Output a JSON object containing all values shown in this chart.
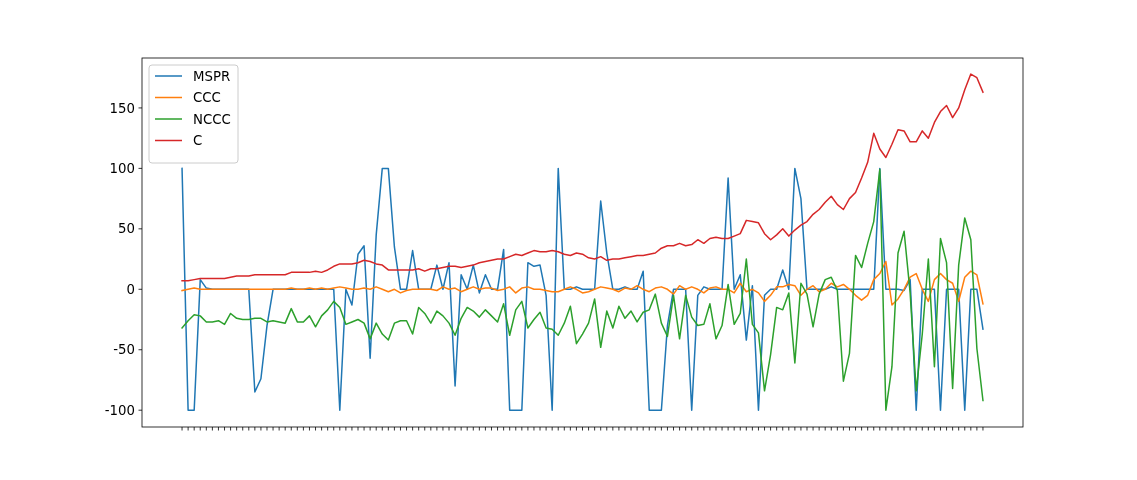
{
  "chart_data": {
    "type": "line",
    "categories": [
      null,
      null,
      null,
      null,
      null,
      null,
      null,
      null,
      null,
      null,
      null,
      null,
      null,
      null,
      null,
      null,
      null,
      null,
      null,
      null,
      null,
      null,
      null,
      null,
      null,
      null,
      null,
      null,
      null,
      null,
      null,
      null,
      null,
      null,
      null,
      null,
      null,
      null,
      null,
      null,
      null,
      null,
      null,
      null,
      null,
      null,
      null,
      null,
      null,
      null,
      null,
      null,
      null,
      null,
      null,
      null,
      null,
      null,
      null,
      null,
      null,
      null,
      null,
      null,
      null,
      null,
      null,
      null,
      null,
      null,
      null,
      null,
      null,
      null,
      null,
      null,
      null,
      null,
      null,
      null,
      null,
      null,
      null,
      null,
      null,
      null,
      null,
      null,
      null,
      null,
      null,
      null,
      null,
      null,
      null,
      null,
      null,
      null,
      null,
      null,
      null,
      null,
      null,
      null,
      null,
      null,
      null,
      null,
      null,
      null,
      null,
      null,
      null,
      null,
      null,
      null,
      null,
      null,
      null,
      null,
      null,
      null,
      null,
      null,
      null,
      null,
      null,
      null,
      null,
      null,
      null,
      null,
      null
    ],
    "series": [
      {
        "name": "MSPR",
        "color": "#1f77b4",
        "values": [
          100,
          -100,
          -100,
          8,
          1,
          0,
          0,
          0,
          0,
          0,
          0,
          0,
          -85,
          -74,
          -30,
          0,
          0,
          0,
          0,
          0,
          0,
          0,
          0,
          0,
          0,
          0,
          -100,
          0,
          -13,
          29,
          36,
          -57,
          45,
          100,
          100,
          35,
          0,
          0,
          32,
          0,
          0,
          0,
          20,
          0,
          22,
          -80,
          12,
          0,
          20,
          -3,
          12,
          0,
          0,
          33,
          -100,
          -100,
          -100,
          22,
          19,
          20,
          -5,
          -100,
          100,
          0,
          0,
          2,
          0,
          0,
          0,
          73,
          30,
          0,
          0,
          2,
          0,
          0,
          15,
          -100,
          -100,
          -100,
          -30,
          0,
          0,
          0,
          -100,
          -5,
          2,
          0,
          0,
          0,
          92,
          0,
          12,
          -42,
          3,
          -100,
          -5,
          0,
          0,
          16,
          0,
          100,
          75,
          0,
          0,
          0,
          0,
          2,
          0,
          0,
          0,
          0,
          0,
          0,
          0,
          100,
          0,
          0,
          0,
          -1,
          8,
          -100,
          0,
          0,
          0,
          -100,
          0,
          0,
          0,
          -100,
          0,
          0,
          -33
        ]
      },
      {
        "name": "CCC",
        "color": "#ff7f0e",
        "values": [
          -1,
          0,
          1,
          0,
          0,
          0,
          0,
          0,
          0,
          0,
          0,
          0,
          0,
          0,
          0,
          0,
          0,
          0,
          1,
          0,
          0,
          1,
          0,
          1,
          0,
          1,
          2,
          1,
          0,
          0,
          1,
          0,
          2,
          0,
          -2,
          0,
          -3,
          -1,
          0,
          0,
          0,
          0,
          -1,
          2,
          0,
          1,
          -2,
          0,
          2,
          0,
          1,
          1,
          -1,
          0,
          2,
          -3,
          1,
          2,
          0,
          0,
          -1,
          -2,
          -2,
          0,
          2,
          0,
          -3,
          -2,
          0,
          2,
          1,
          0,
          -2,
          1,
          0,
          3,
          0,
          -2,
          1,
          2,
          0,
          -4,
          3,
          0,
          2,
          0,
          -3,
          1,
          2,
          0,
          0,
          -3,
          5,
          -2,
          0,
          -3,
          -10,
          -5,
          2,
          2,
          4,
          3,
          -5,
          0,
          3,
          -2,
          0,
          5,
          2,
          4,
          0,
          -5,
          -9,
          -5,
          8,
          13,
          23,
          -13,
          -8,
          0,
          10,
          13,
          0,
          -10,
          8,
          13,
          8,
          5,
          -10,
          10,
          15,
          12,
          -12
        ]
      },
      {
        "name": "NCCC",
        "color": "#2ca02c",
        "values": [
          -32,
          -26,
          -21,
          -22,
          -27,
          -27,
          -26,
          -29,
          -20,
          -24,
          -25,
          -25,
          -24,
          -24,
          -27,
          -26,
          -27,
          -28,
          -16,
          -27,
          -27,
          -22,
          -31,
          -22,
          -17,
          -10,
          -15,
          -29,
          -27,
          -25,
          -28,
          -41,
          -28,
          -37,
          -42,
          -28,
          -26,
          -26,
          -37,
          -15,
          -20,
          -28,
          -18,
          -22,
          -28,
          -38,
          -24,
          -15,
          -18,
          -23,
          -17,
          -22,
          -27,
          -12,
          -38,
          -17,
          -10,
          -32,
          -25,
          -19,
          -32,
          -33,
          -38,
          -28,
          -14,
          -45,
          -37,
          -28,
          -8,
          -48,
          -18,
          -32,
          -14,
          -24,
          -18,
          -27,
          -19,
          -17,
          -4,
          -28,
          -39,
          -5,
          -41,
          -5,
          -23,
          -30,
          -29,
          -12,
          -41,
          -30,
          4,
          -29,
          -20,
          25,
          -29,
          -36,
          -84,
          -54,
          -15,
          -17,
          -3,
          -61,
          5,
          -4,
          -31,
          -4,
          8,
          10,
          -1,
          -76,
          -53,
          28,
          18,
          38,
          56,
          99,
          -100,
          -64,
          30,
          48,
          -3,
          -84,
          -37,
          25,
          -64,
          42,
          22,
          -82,
          20,
          59,
          41,
          -49,
          -92
        ]
      },
      {
        "name": "C",
        "color": "#d62728",
        "values": [
          7,
          7,
          8,
          9,
          9,
          9,
          9,
          9,
          10,
          11,
          11,
          11,
          12,
          12,
          12,
          12,
          12,
          12,
          14,
          14,
          14,
          14,
          15,
          14,
          16,
          19,
          21,
          21,
          21,
          22,
          24,
          23,
          21,
          20,
          16,
          16,
          16,
          16,
          16,
          17,
          15,
          17,
          17,
          18,
          19,
          19,
          18,
          19,
          20,
          22,
          23,
          24,
          25,
          25,
          27,
          29,
          28,
          30,
          32,
          31,
          31,
          32,
          31,
          29,
          28,
          30,
          29,
          26,
          25,
          27,
          24,
          25,
          25,
          26,
          27,
          28,
          28,
          29,
          30,
          34,
          36,
          36,
          38,
          36,
          37,
          41,
          38,
          42,
          43,
          42,
          42,
          44,
          46,
          57,
          56,
          55,
          46,
          41,
          45,
          50,
          44,
          49,
          53,
          56,
          62,
          66,
          72,
          77,
          70,
          66,
          75,
          80,
          92,
          105,
          129,
          116,
          109,
          120,
          132,
          131,
          122,
          122,
          131,
          125,
          138,
          147,
          152,
          142,
          150,
          165,
          178,
          175,
          163
        ]
      }
    ],
    "ylim": [
      -113.9,
      191.3
    ],
    "yticks": [
      -100,
      -50,
      0,
      50,
      100,
      150
    ],
    "legend": "top left"
  }
}
